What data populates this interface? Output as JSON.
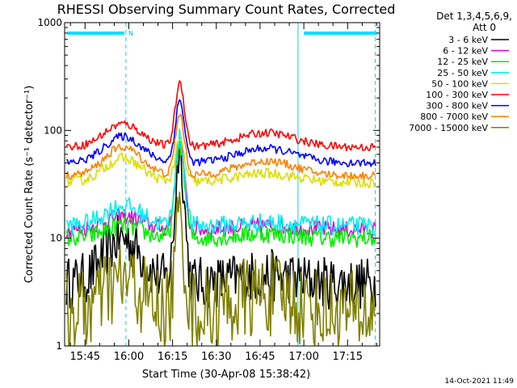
{
  "chart_data": {
    "type": "line",
    "title": "RHESSI Observing Summary Count Rates, Corrected",
    "xlabel": "Start Time (30-Apr-08 15:38:42)",
    "ylabel": "Corrected Count Rate (s⁻¹ detector⁻¹)",
    "ylog": true,
    "ylim": [
      1,
      1000
    ],
    "xlim_minutes": [
      -7,
      101
    ],
    "x_ticks": [
      {
        "label": "15:45",
        "min": 0
      },
      {
        "label": "16:00",
        "min": 15
      },
      {
        "label": "16:15",
        "min": 30
      },
      {
        "label": "16:30",
        "min": 45
      },
      {
        "label": "16:45",
        "min": 60
      },
      {
        "label": "17:00",
        "min": 75
      },
      {
        "label": "17:15",
        "min": 90
      }
    ],
    "y_ticks": [
      {
        "label": "1",
        "v": 1
      },
      {
        "label": "10",
        "v": 10
      },
      {
        "label": "100",
        "v": 100
      },
      {
        "label": "1000",
        "v": 1000
      }
    ],
    "legend_header": [
      "Det 1,3,4,5,6,9,",
      "Att 0"
    ],
    "legend_position": "right",
    "timestamp": "14-Oct-2021 11:49",
    "night_bars": [
      {
        "label": "N",
        "from_min": -6,
        "to_min": 13.5
      },
      {
        "label": "",
        "from_min": 75,
        "to_min": 100
      }
    ],
    "markers_min": [
      14,
      73,
      99.5
    ],
    "series": [
      {
        "name": "3 - 6 keV",
        "color": "#000000",
        "base": 3.8,
        "hump1": 10,
        "peak": 70,
        "hump2": 4.5,
        "noise": 0.25
      },
      {
        "name": "6 - 12 keV",
        "color": "#dd00dd",
        "base": 12,
        "hump1": 16,
        "peak": 80,
        "hump2": 13,
        "noise": 0.08
      },
      {
        "name": "12 - 25 keV",
        "color": "#00ee00",
        "base": 10,
        "hump1": 13,
        "peak": 75,
        "hump2": 11,
        "noise": 0.09
      },
      {
        "name": "25 - 50 keV",
        "color": "#00eeee",
        "base": 13,
        "hump1": 20,
        "peak": 85,
        "hump2": 14,
        "noise": 0.09
      },
      {
        "name": "50 - 100 keV",
        "color": "#dddd00",
        "base": 33,
        "hump1": 55,
        "peak": 80,
        "hump2": 40,
        "noise": 0.05
      },
      {
        "name": "100 - 300 keV",
        "color": "#ff0000",
        "base": 70,
        "hump1": 115,
        "peak": 280,
        "hump2": 95,
        "noise": 0.04
      },
      {
        "name": "300 - 800 keV",
        "color": "#0000ff",
        "base": 50,
        "hump1": 88,
        "peak": 190,
        "hump2": 68,
        "noise": 0.04
      },
      {
        "name": "800 - 7000 keV",
        "color": "#ff8000",
        "base": 38,
        "hump1": 70,
        "peak": 140,
        "hump2": 52,
        "noise": 0.04
      },
      {
        "name": "7000 - 15000 keV",
        "color": "#808000",
        "base": 2,
        "hump1": 4,
        "peak": 16,
        "hump2": 3,
        "noise": 0.4
      }
    ]
  }
}
